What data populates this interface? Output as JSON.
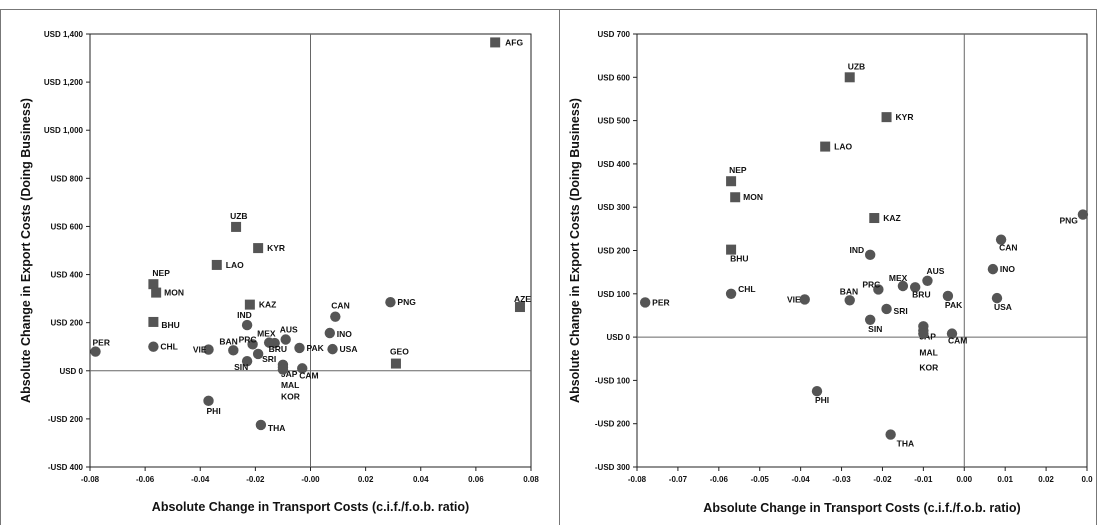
{
  "chart_data": [
    {
      "type": "scatter",
      "title": "",
      "xlabel": "Absolute Change in Transport Costs (c.i.f./f.o.b. ratio)",
      "ylabel": "Absolute Change in Export Costs (Doing Business)",
      "xlim": [
        -0.08,
        0.08
      ],
      "ylim": [
        -400,
        1400
      ],
      "xticks": [
        -0.08,
        -0.06,
        -0.04,
        -0.02,
        0,
        0.02,
        0.04,
        0.06,
        0.08
      ],
      "xtick_labels": [
        "-0.08",
        "-0.06",
        "-0.04",
        "-0.02",
        "-0.00",
        "0.02",
        "0.04",
        "0.06",
        "0.08"
      ],
      "yticks": [
        -400,
        -200,
        0,
        200,
        400,
        600,
        800,
        1000,
        1200,
        1400
      ],
      "ytick_labels": [
        "-USD 400",
        "-USD 200",
        "USD 0",
        "USD 200",
        "USD 400",
        "USD 600",
        "USD 800",
        "USD 1,000",
        "USD 1,200",
        "USD 1,400"
      ],
      "grid": false,
      "marker_color": "#555555",
      "points": [
        {
          "label": "AFG",
          "x": 0.067,
          "y": 1365,
          "marker": "square"
        },
        {
          "label": "AZE",
          "x": 0.076,
          "y": 265,
          "marker": "square"
        },
        {
          "label": "GEO",
          "x": 0.031,
          "y": 30,
          "marker": "square"
        },
        {
          "label": "UZB",
          "x": -0.027,
          "y": 598,
          "marker": "square"
        },
        {
          "label": "KYR",
          "x": -0.019,
          "y": 510,
          "marker": "square"
        },
        {
          "label": "LAO",
          "x": -0.034,
          "y": 440,
          "marker": "square"
        },
        {
          "label": "KAZ",
          "x": -0.022,
          "y": 275,
          "marker": "square"
        },
        {
          "label": "NEP",
          "x": -0.057,
          "y": 360,
          "marker": "square"
        },
        {
          "label": "MON",
          "x": -0.056,
          "y": 325,
          "marker": "square"
        },
        {
          "label": "BHU",
          "x": -0.057,
          "y": 203,
          "marker": "square"
        },
        {
          "label": "PER",
          "x": -0.078,
          "y": 80,
          "marker": "circle"
        },
        {
          "label": "CHL",
          "x": -0.057,
          "y": 100,
          "marker": "circle"
        },
        {
          "label": "VIE",
          "x": -0.037,
          "y": 88,
          "marker": "circle"
        },
        {
          "label": "BAN",
          "x": -0.028,
          "y": 85,
          "marker": "circle"
        },
        {
          "label": "IND",
          "x": -0.023,
          "y": 190,
          "marker": "circle"
        },
        {
          "label": "PRC",
          "x": -0.021,
          "y": 110,
          "marker": "circle"
        },
        {
          "label": "SIN",
          "x": -0.023,
          "y": 40,
          "marker": "circle"
        },
        {
          "label": "SRI",
          "x": -0.019,
          "y": 70,
          "marker": "circle"
        },
        {
          "label": "MEX",
          "x": -0.015,
          "y": 117,
          "marker": "circle"
        },
        {
          "label": "BRU",
          "x": -0.013,
          "y": 115,
          "marker": "circle"
        },
        {
          "label": "AUS",
          "x": -0.009,
          "y": 130,
          "marker": "circle"
        },
        {
          "label": "PAK",
          "x": -0.004,
          "y": 95,
          "marker": "circle"
        },
        {
          "label": "JAP",
          "x": -0.01,
          "y": 25,
          "marker": "circle"
        },
        {
          "label": "MAL",
          "x": -0.01,
          "y": 15,
          "marker": "circle"
        },
        {
          "label": "KOR",
          "x": -0.01,
          "y": 5,
          "marker": "circle"
        },
        {
          "label": "CAM",
          "x": -0.003,
          "y": 10,
          "marker": "circle"
        },
        {
          "label": "CAN",
          "x": 0.009,
          "y": 225,
          "marker": "circle"
        },
        {
          "label": "INO",
          "x": 0.007,
          "y": 157,
          "marker": "circle"
        },
        {
          "label": "USA",
          "x": 0.008,
          "y": 90,
          "marker": "circle"
        },
        {
          "label": "PNG",
          "x": 0.029,
          "y": 285,
          "marker": "circle"
        },
        {
          "label": "PHI",
          "x": -0.037,
          "y": -125,
          "marker": "circle"
        },
        {
          "label": "THA",
          "x": -0.018,
          "y": -225,
          "marker": "circle"
        }
      ]
    },
    {
      "type": "scatter",
      "title": "",
      "xlabel": "Absolute Change in Transport Costs (c.i.f./f.o.b. ratio)",
      "ylabel": "Absolute Change in Export Costs (Doing Business)",
      "xlim": [
        -0.08,
        0.03
      ],
      "ylim": [
        -300,
        700
      ],
      "xticks": [
        -0.08,
        -0.07,
        -0.06,
        -0.05,
        -0.04,
        -0.03,
        -0.02,
        -0.01,
        0,
        0.01,
        0.02,
        0.03
      ],
      "xtick_labels": [
        "-0.08",
        "-0.07",
        "-0.06",
        "-0.05",
        "-0.04",
        "-0.03",
        "-0.02",
        "-0.01",
        "0.00",
        "0.01",
        "0.02",
        "0.0"
      ],
      "yticks": [
        -300,
        -200,
        -100,
        0,
        100,
        200,
        300,
        400,
        500,
        600,
        700
      ],
      "ytick_labels": [
        "-USD 300",
        "-USD 200",
        "-USD 100",
        "USD 0",
        "USD 100",
        "USD 200",
        "USD 300",
        "USD 400",
        "USD 500",
        "USD 600",
        "USD 700"
      ],
      "grid": false,
      "marker_color": "#555555",
      "points": [
        {
          "label": "UZB",
          "x": -0.028,
          "y": 600,
          "marker": "square"
        },
        {
          "label": "KYR",
          "x": -0.019,
          "y": 508,
          "marker": "square"
        },
        {
          "label": "LAO",
          "x": -0.034,
          "y": 440,
          "marker": "square"
        },
        {
          "label": "NEP",
          "x": -0.057,
          "y": 360,
          "marker": "square"
        },
        {
          "label": "MON",
          "x": -0.056,
          "y": 323,
          "marker": "square"
        },
        {
          "label": "KAZ",
          "x": -0.022,
          "y": 275,
          "marker": "square"
        },
        {
          "label": "BHU",
          "x": -0.057,
          "y": 202,
          "marker": "square"
        },
        {
          "label": "PER",
          "x": -0.078,
          "y": 80,
          "marker": "circle"
        },
        {
          "label": "CHL",
          "x": -0.057,
          "y": 100,
          "marker": "circle"
        },
        {
          "label": "VIE",
          "x": -0.039,
          "y": 87,
          "marker": "circle"
        },
        {
          "label": "BAN",
          "x": -0.028,
          "y": 85,
          "marker": "circle"
        },
        {
          "label": "IND",
          "x": -0.023,
          "y": 190,
          "marker": "circle"
        },
        {
          "label": "PRC",
          "x": -0.021,
          "y": 110,
          "marker": "circle"
        },
        {
          "label": "MEX",
          "x": -0.015,
          "y": 118,
          "marker": "circle"
        },
        {
          "label": "BRU",
          "x": -0.012,
          "y": 115,
          "marker": "circle"
        },
        {
          "label": "AUS",
          "x": -0.009,
          "y": 130,
          "marker": "circle"
        },
        {
          "label": "PAK",
          "x": -0.004,
          "y": 95,
          "marker": "circle"
        },
        {
          "label": "SRI",
          "x": -0.019,
          "y": 65,
          "marker": "circle"
        },
        {
          "label": "SIN",
          "x": -0.023,
          "y": 40,
          "marker": "circle"
        },
        {
          "label": "JAP",
          "x": -0.01,
          "y": 25,
          "marker": "circle"
        },
        {
          "label": "MAL",
          "x": -0.01,
          "y": 15,
          "marker": "circle"
        },
        {
          "label": "KOR",
          "x": -0.01,
          "y": 8,
          "marker": "circle"
        },
        {
          "label": "CAM",
          "x": -0.003,
          "y": 8,
          "marker": "circle"
        },
        {
          "label": "CAN",
          "x": 0.009,
          "y": 225,
          "marker": "circle"
        },
        {
          "label": "INO",
          "x": 0.007,
          "y": 157,
          "marker": "circle"
        },
        {
          "label": "USA",
          "x": 0.008,
          "y": 90,
          "marker": "circle"
        },
        {
          "label": "PNG",
          "x": 0.029,
          "y": 283,
          "marker": "circle"
        },
        {
          "label": "PHI",
          "x": -0.036,
          "y": -125,
          "marker": "circle"
        },
        {
          "label": "THA",
          "x": -0.018,
          "y": -225,
          "marker": "circle"
        }
      ]
    }
  ]
}
